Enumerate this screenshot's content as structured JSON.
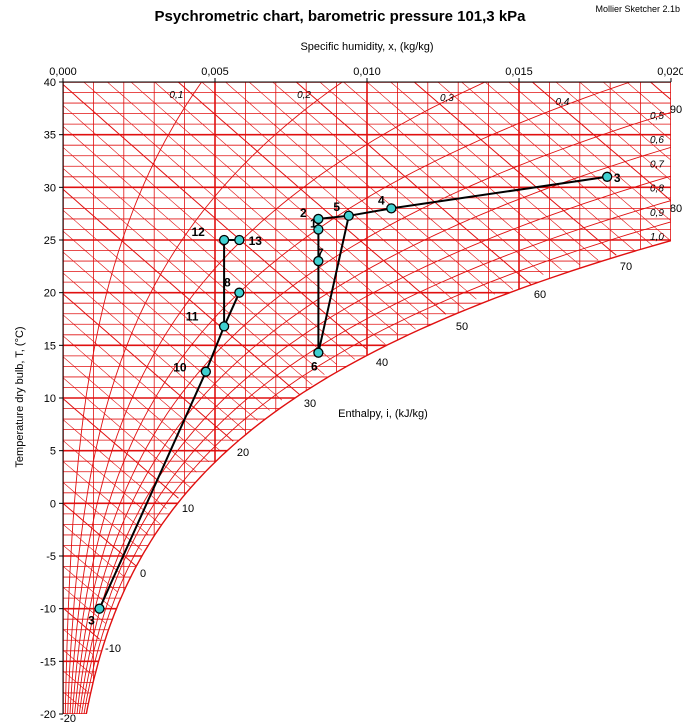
{
  "chart_data": {
    "type": "scatter",
    "title": "Psychrometric chart, barometric pressure 101,3 kPa",
    "watermark": "Mollier Sketcher 2.1b",
    "xlabel": "Specific humidity, x, (kg/kg)",
    "ylabel": "Temperature dry bulb, T, (°C)",
    "enthalpy_label": "Enthalpy, i, (kJ/kg)",
    "xlim": [
      0,
      0.02
    ],
    "ylim": [
      -20,
      40
    ],
    "grid": true,
    "x_ticks": [
      "0,000",
      "0,005",
      "0,010",
      "0,015",
      "0,020"
    ],
    "x_tick_values": [
      0,
      0.005,
      0.01,
      0.015,
      0.02
    ],
    "y_ticks": [
      "40",
      "35",
      "30",
      "25",
      "20",
      "15",
      "10",
      "5",
      "0",
      "-5",
      "-10",
      "-15",
      "-20"
    ],
    "y_tick_values": [
      40,
      35,
      30,
      25,
      20,
      15,
      10,
      5,
      0,
      -5,
      -10,
      -15,
      -20
    ],
    "enthalpy_values": [
      "-20",
      "-10",
      "0",
      "10",
      "20",
      "30",
      "40",
      "50",
      "60",
      "70",
      "80",
      "90"
    ],
    "rh_labels": [
      "0,1",
      "0,2",
      "0,3",
      "0,4",
      "0,5",
      "0,6",
      "0,7",
      "0,8",
      "0,9",
      "1,0"
    ],
    "points": [
      {
        "label": "3",
        "x": 0.0012,
        "y": -10
      },
      {
        "label": "10",
        "x": 0.0047,
        "y": 12.5
      },
      {
        "label": "11",
        "x": 0.0053,
        "y": 16.8
      },
      {
        "label": "8",
        "x": 0.0058,
        "y": 20
      },
      {
        "label": "12",
        "x": 0.0053,
        "y": 25
      },
      {
        "label": "13",
        "x": 0.0058,
        "y": 25
      },
      {
        "label": "6",
        "x": 0.0084,
        "y": 14.3
      },
      {
        "label": "7",
        "x": 0.0084,
        "y": 23
      },
      {
        "label": "1",
        "x": 0.0084,
        "y": 26
      },
      {
        "label": "2",
        "x": 0.0084,
        "y": 27
      },
      {
        "label": "5",
        "x": 0.0094,
        "y": 27.3
      },
      {
        "label": "4",
        "x": 0.0108,
        "y": 28
      },
      {
        "label": "3",
        "x": 0.0179,
        "y": 31
      }
    ],
    "process_lines": [
      [
        [
          0.0012,
          -10
        ],
        [
          0.0047,
          12.5
        ],
        [
          0.0053,
          16.8
        ],
        [
          0.0058,
          20
        ],
        [
          0.0053,
          16.8
        ],
        [
          0.0053,
          25
        ],
        [
          0.0058,
          25
        ]
      ],
      [
        [
          0.0084,
          14.3
        ],
        [
          0.0084,
          27
        ],
        [
          0.0094,
          27.3
        ],
        [
          0.0108,
          28
        ],
        [
          0.0179,
          31
        ]
      ],
      [
        [
          0.0084,
          14.3
        ],
        [
          0.0094,
          27.3
        ]
      ]
    ],
    "colors": {
      "grid": "#e01010",
      "process": "#000000",
      "marker_fill": "#40d0d0"
    }
  }
}
